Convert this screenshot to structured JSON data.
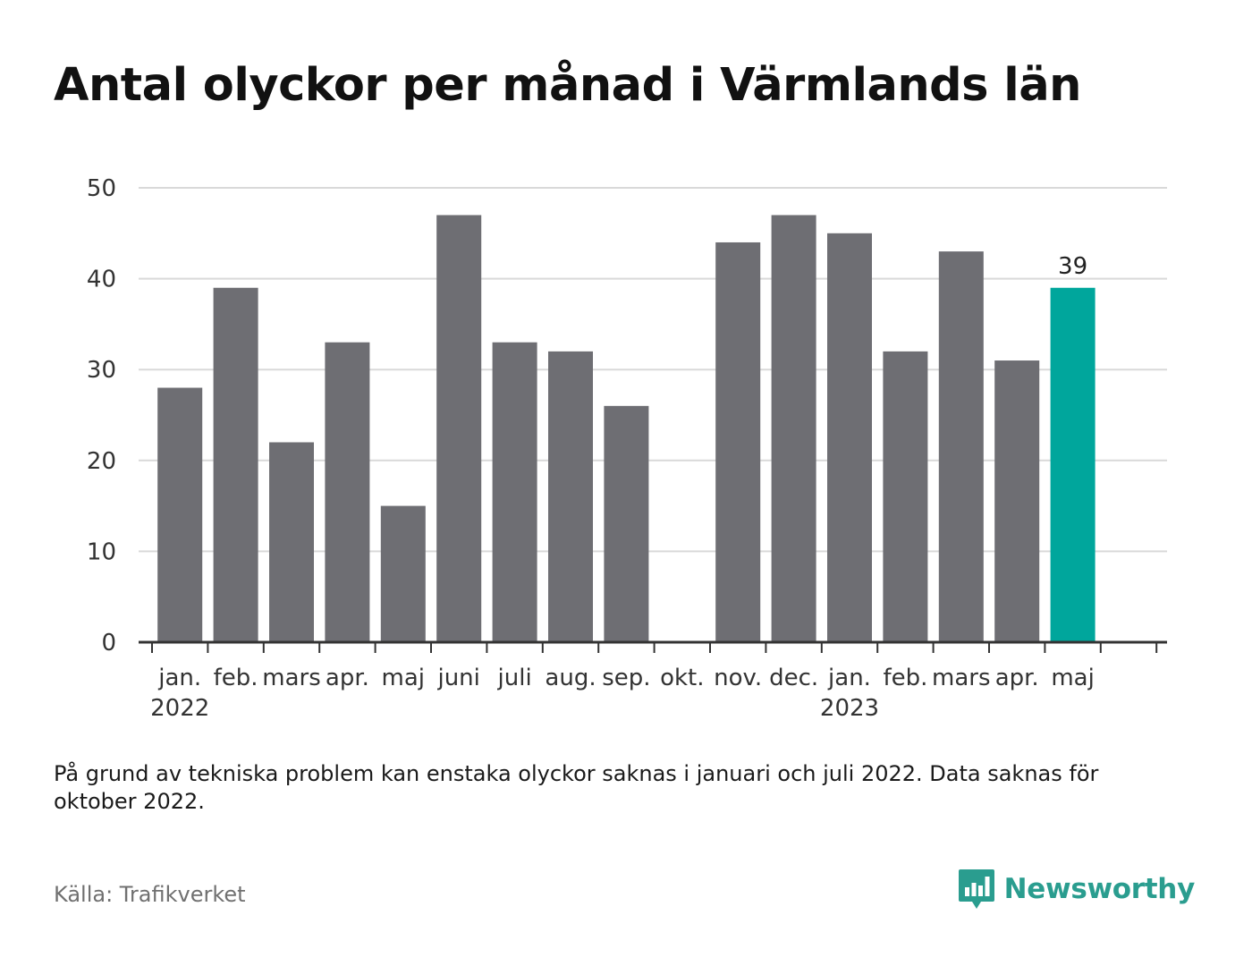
{
  "title": "Antal olyckor per månad i Värmlands län",
  "note": "På grund av tekniska problem kan enstaka olyckor saknas i januari och juli 2022. Data saknas för oktober 2022.",
  "source": "Källa: Trafikverket",
  "brand": {
    "name": "Newsworthy",
    "icon": "bar-chart-speech-bubble-icon",
    "color": "#2a9d8f"
  },
  "colors": {
    "bar": "#6e6e73",
    "highlight": "#00a69c",
    "grid": "#d9d9d9",
    "axis": "#333333"
  },
  "chart_data": {
    "type": "bar",
    "categories": [
      "jan.",
      "feb.",
      "mars",
      "apr.",
      "maj",
      "juni",
      "juli",
      "aug.",
      "sep.",
      "okt.",
      "nov.",
      "dec.",
      "jan.",
      "feb.",
      "mars",
      "apr.",
      "maj"
    ],
    "years": [
      "2022",
      "",
      "",
      "",
      "",
      "",
      "",
      "",
      "",
      "",
      "",
      "",
      "2023",
      "",
      "",
      "",
      ""
    ],
    "values": [
      28,
      39,
      22,
      33,
      15,
      47,
      33,
      32,
      26,
      null,
      44,
      47,
      45,
      32,
      43,
      31,
      39
    ],
    "highlight_index": 16,
    "highlight_label": "39",
    "yticks": [
      0,
      10,
      20,
      30,
      40,
      50
    ],
    "ylim": [
      0,
      50
    ],
    "grid": true,
    "legend": "none",
    "xlabel": "",
    "ylabel": ""
  }
}
